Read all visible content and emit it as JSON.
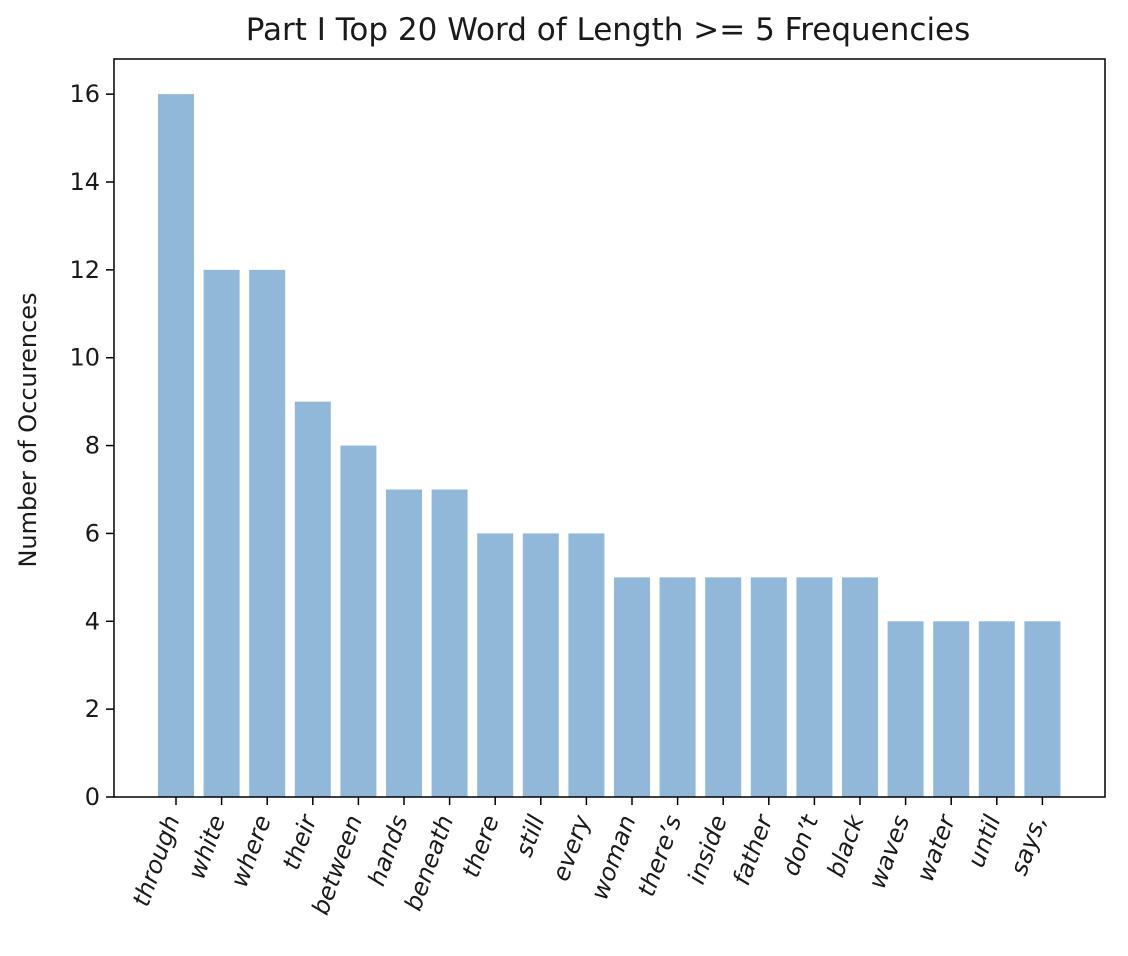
{
  "chart_data": {
    "type": "bar",
    "title": "Part I Top 20 Word of Length >= 5 Frequencies",
    "xlabel": "",
    "ylabel": "Number of Occurences",
    "categories": [
      "through",
      "white",
      "where",
      "their",
      "between",
      "hands",
      "beneath",
      "there",
      "still",
      "every",
      "woman",
      "there’s",
      "inside",
      "father",
      "don’t",
      "black",
      "waves",
      "water",
      "until",
      "says,"
    ],
    "values": [
      16,
      12,
      12,
      9,
      8,
      7,
      7,
      6,
      6,
      6,
      5,
      5,
      5,
      5,
      5,
      5,
      4,
      4,
      4,
      4
    ],
    "ylim": [
      0,
      16.8
    ],
    "yticks": [
      0,
      2,
      4,
      6,
      8,
      10,
      12,
      14,
      16
    ],
    "bar_color": "#92b8d9",
    "grid": false,
    "legend": "none"
  }
}
